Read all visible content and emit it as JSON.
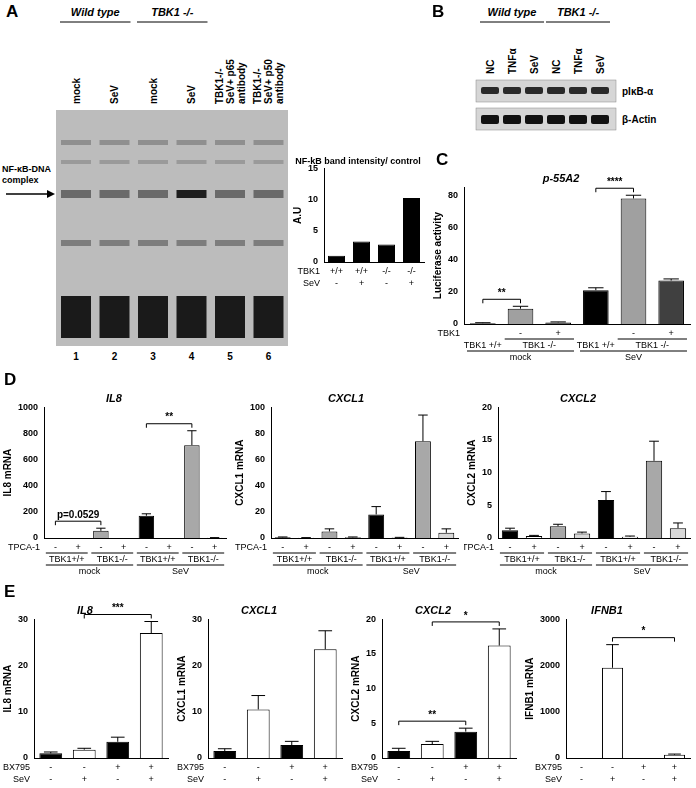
{
  "panels": [
    "A",
    "B",
    "C",
    "D",
    "E"
  ],
  "gel": {
    "groups": [
      {
        "label": "Wild type",
        "lanes": [
          0,
          1
        ]
      },
      {
        "label": "TBK1 -/-",
        "lanes": [
          2,
          3
        ]
      }
    ],
    "lanes": [
      [
        "mock"
      ],
      [
        "SeV"
      ],
      [
        "mock"
      ],
      [
        "SeV"
      ],
      [
        "TBK1-/-",
        "SeV+ p65",
        "antibody"
      ],
      [
        "TBK1-/-",
        "SeV+ p50",
        "antibody"
      ]
    ],
    "lane_numbers": [
      1,
      2,
      3,
      4,
      5,
      6
    ],
    "band_label": [
      "NF-κB-DNA",
      "complex"
    ]
  },
  "blot": {
    "groups": [
      {
        "label": "Wild type",
        "lanes": [
          0,
          2
        ]
      },
      {
        "label": "TBK1 -/-",
        "lanes": [
          3,
          5
        ]
      }
    ],
    "lanes": [
      "NC",
      "TNFα",
      "SeV",
      "NC",
      "TNFα",
      "SeV"
    ],
    "rows": [
      "pIκB-α",
      "β-Actin"
    ]
  },
  "chart_data": [
    {
      "type": "bar",
      "title": "NF-kB band intensity/ control",
      "y_label": "A.U",
      "ylim": [
        0,
        15
      ],
      "yticks": [
        0,
        5,
        10,
        15
      ],
      "grid": false,
      "values": [
        1,
        3.3,
        2.8,
        10.3
      ],
      "colors": [
        "#000000",
        "#000000",
        "#000000",
        "#000000"
      ],
      "x_rows": [
        {
          "name": "TBK1",
          "labels": [
            "+/+",
            "+/+",
            "-/-",
            "-/-"
          ]
        },
        {
          "name": "SeV",
          "labels": [
            "-",
            "+",
            "-",
            "+"
          ]
        }
      ]
    },
    {
      "type": "bar",
      "title": "p-55A2",
      "y_label": "Luciferase activity",
      "ylim": [
        0,
        85
      ],
      "yticks": [
        0,
        20,
        40,
        60,
        80
      ],
      "grid": false,
      "values": [
        0.5,
        9.5,
        1,
        21,
        78,
        27
      ],
      "errors": [
        0.3,
        1.5,
        0.3,
        1.5,
        2,
        1
      ],
      "colors": [
        "#000000",
        "#a0a0a0",
        "#404040",
        "#000000",
        "#a0a0a0",
        "#404040"
      ],
      "significance": [
        {
          "label": "**",
          "bars": [
            0,
            1
          ]
        },
        {
          "label": "****",
          "bars": [
            3,
            4
          ]
        }
      ],
      "x_rows": [
        {
          "name": "TBK1",
          "labels": [
            null,
            "-",
            "+",
            null,
            "-",
            "+"
          ]
        },
        {
          "spans": [
            {
              "label": "TBK1 +/+",
              "bars": [
                0,
                0
              ]
            },
            {
              "label": "TBK1 -/-",
              "bars": [
                1,
                2
              ]
            },
            {
              "label": "TBK1 +/+",
              "bars": [
                3,
                3
              ]
            },
            {
              "label": "TBK1 -/-",
              "bars": [
                4,
                5
              ]
            }
          ]
        },
        {
          "spans": [
            {
              "label": "mock",
              "bars": [
                0,
                2
              ]
            },
            {
              "label": "SeV",
              "bars": [
                3,
                5
              ]
            }
          ]
        }
      ]
    },
    {
      "type": "bar",
      "title": "IL8",
      "y_label": "IL8 mRNA",
      "ylim": [
        0,
        1000
      ],
      "yticks": [
        0,
        200,
        400,
        600,
        800,
        1000
      ],
      "grid": false,
      "values": [
        0,
        0,
        55,
        0,
        170,
        0,
        710,
        2
      ],
      "errors": [
        0,
        0,
        20,
        0,
        15,
        0,
        110,
        1
      ],
      "colors": [
        "#000000",
        "#ffffff",
        "#a8a8a8",
        "#d8d8d8",
        "#000000",
        "#ffffff",
        "#a8a8a8",
        "#d8d8d8"
      ],
      "significance": [
        {
          "label": "p=0.0529",
          "bars": [
            0,
            2
          ]
        },
        {
          "label": "**",
          "bars": [
            4,
            6
          ]
        }
      ],
      "x_rows": [
        {
          "name": "TPCA-1",
          "labels": [
            "-",
            "+",
            "-",
            "+",
            "-",
            "+",
            "-",
            "+"
          ]
        },
        {
          "spans": [
            {
              "label": "TBK1+/+",
              "bars": [
                0,
                1
              ]
            },
            {
              "label": "TBK1-/-",
              "bars": [
                2,
                3
              ]
            },
            {
              "label": "TBK1+/+",
              "bars": [
                4,
                5
              ]
            },
            {
              "label": "TBK1-/-",
              "bars": [
                6,
                7
              ]
            }
          ]
        },
        {
          "spans": [
            {
              "label": "mock",
              "bars": [
                0,
                3
              ]
            },
            {
              "label": "SeV",
              "bars": [
                4,
                7
              ]
            }
          ]
        }
      ]
    },
    {
      "type": "bar",
      "title": "CXCL1",
      "y_label": "CXCL1 mRNA",
      "ylim": [
        0,
        100
      ],
      "yticks": [
        0,
        20,
        40,
        60,
        80,
        100
      ],
      "grid": false,
      "values": [
        0.5,
        0.2,
        5,
        0.5,
        18,
        0.3,
        74,
        4
      ],
      "errors": [
        0.3,
        0.1,
        2,
        0.3,
        6,
        0.2,
        20,
        3
      ],
      "colors": [
        "#000000",
        "#ffffff",
        "#a8a8a8",
        "#d8d8d8",
        "#000000",
        "#ffffff",
        "#a8a8a8",
        "#d8d8d8"
      ],
      "x_rows": [
        {
          "name": "TPCA-1",
          "labels": [
            "-",
            "+",
            "-",
            "+",
            "-",
            "+",
            "-",
            "+"
          ]
        },
        {
          "spans": [
            {
              "label": "TBK1+/+",
              "bars": [
                0,
                1
              ]
            },
            {
              "label": "TBK1-/-",
              "bars": [
                2,
                3
              ]
            },
            {
              "label": "TBK1+/+",
              "bars": [
                4,
                5
              ]
            },
            {
              "label": "TBK1-/-",
              "bars": [
                6,
                7
              ]
            }
          ]
        },
        {
          "spans": [
            {
              "label": "mock",
              "bars": [
                0,
                3
              ]
            },
            {
              "label": "SeV",
              "bars": [
                4,
                7
              ]
            }
          ]
        }
      ]
    },
    {
      "type": "bar",
      "title": "CXCL2",
      "y_label": "CXCL2 mRNA",
      "ylim": [
        0,
        20
      ],
      "yticks": [
        0,
        5,
        10,
        15,
        20
      ],
      "grid": false,
      "values": [
        1.2,
        0.3,
        1.8,
        0.7,
        5.8,
        0.2,
        11.8,
        1.5
      ],
      "errors": [
        0.3,
        0.1,
        0.3,
        0.2,
        1.3,
        0.1,
        3,
        0.8
      ],
      "colors": [
        "#000000",
        "#ffffff",
        "#a8a8a8",
        "#d8d8d8",
        "#000000",
        "#ffffff",
        "#a8a8a8",
        "#d8d8d8"
      ],
      "x_rows": [
        {
          "name": "TPCA-1",
          "labels": [
            "-",
            "+",
            "-",
            "+",
            "-",
            "+",
            "-",
            "+"
          ]
        },
        {
          "spans": [
            {
              "label": "TBK1+/+",
              "bars": [
                0,
                1
              ]
            },
            {
              "label": "TBK1-/-",
              "bars": [
                2,
                3
              ]
            },
            {
              "label": "TBK1+/+",
              "bars": [
                4,
                5
              ]
            },
            {
              "label": "TBK1-/-",
              "bars": [
                6,
                7
              ]
            }
          ]
        },
        {
          "spans": [
            {
              "label": "mock",
              "bars": [
                0,
                3
              ]
            },
            {
              "label": "SeV",
              "bars": [
                4,
                7
              ]
            }
          ]
        }
      ]
    },
    {
      "type": "bar",
      "title": "IL8",
      "y_label": "IL8 mRNA",
      "ylim": [
        0,
        30
      ],
      "yticks": [
        0,
        10,
        20,
        30
      ],
      "grid": false,
      "values": [
        1,
        1.8,
        3.5,
        27
      ],
      "errors": [
        0.3,
        0.3,
        1,
        2.5
      ],
      "colors": [
        "#000000",
        "#ffffff",
        "#000000",
        "#ffffff"
      ],
      "significance": [
        {
          "label": "***",
          "bars": [
            1,
            3
          ]
        }
      ],
      "x_rows": [
        {
          "name": "BX795",
          "labels": [
            "-",
            "-",
            "+",
            "+"
          ]
        },
        {
          "name": "SeV",
          "labels": [
            "-",
            "+",
            "-",
            "+"
          ]
        }
      ]
    },
    {
      "type": "bar",
      "title": "CXCL1",
      "y_label": "CXCL1 mRNA",
      "ylim": [
        0,
        30
      ],
      "yticks": [
        0,
        10,
        20,
        30
      ],
      "grid": false,
      "values": [
        1.5,
        10.5,
        2.8,
        23.5
      ],
      "errors": [
        0.5,
        3,
        0.8,
        4
      ],
      "colors": [
        "#000000",
        "#ffffff",
        "#000000",
        "#ffffff"
      ],
      "x_rows": [
        {
          "name": "BX795",
          "labels": [
            "-",
            "-",
            "+",
            "+"
          ]
        },
        {
          "name": "SeV",
          "labels": [
            "-",
            "+",
            "-",
            "+"
          ]
        }
      ]
    },
    {
      "type": "bar",
      "title": "CXCL2",
      "y_label": "CXCL2 mRNA",
      "ylim": [
        0,
        20
      ],
      "yticks": [
        0,
        5,
        10,
        15,
        20
      ],
      "grid": false,
      "values": [
        1,
        2,
        3.8,
        16.2
      ],
      "errors": [
        0.4,
        0.4,
        0.5,
        2.4
      ],
      "colors": [
        "#000000",
        "#ffffff",
        "#000000",
        "#ffffff"
      ],
      "significance": [
        {
          "label": "**",
          "bars": [
            0,
            2
          ]
        },
        {
          "label": "*",
          "bars": [
            1,
            3
          ]
        }
      ],
      "x_rows": [
        {
          "name": "BX795",
          "labels": [
            "-",
            "-",
            "+",
            "+"
          ]
        },
        {
          "name": "SeV",
          "labels": [
            "-",
            "+",
            "-",
            "+"
          ]
        }
      ]
    },
    {
      "type": "bar",
      "title": "IFNB1",
      "y_label": "IFNB1 mRNA",
      "ylim": [
        0,
        3000
      ],
      "yticks": [
        0,
        1000,
        2000,
        3000
      ],
      "grid": false,
      "values": [
        0,
        1950,
        0,
        70
      ],
      "errors": [
        0,
        500,
        0,
        15
      ],
      "colors": [
        "#000000",
        "#ffffff",
        "#000000",
        "#ffffff"
      ],
      "significance": [
        {
          "label": "*",
          "bars": [
            1,
            3
          ]
        }
      ],
      "x_rows": [
        {
          "name": "BX795",
          "labels": [
            "-",
            "-",
            "+",
            "+"
          ]
        },
        {
          "name": "SeV",
          "labels": [
            "-",
            "+",
            "-",
            "+"
          ]
        }
      ]
    }
  ]
}
